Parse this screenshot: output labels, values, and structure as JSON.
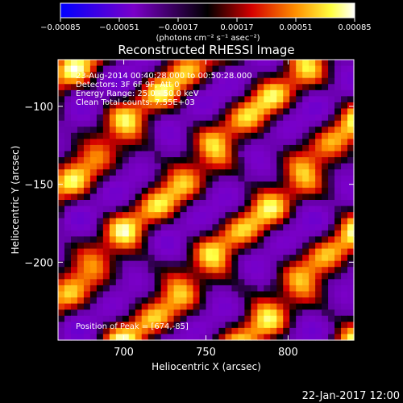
{
  "chart_data": {
    "type": "heatmap",
    "title": "Reconstructed RHESSI Image",
    "xlabel": "Heliocentric X (arcsec)",
    "ylabel": "Heliocentric Y (arcsec)",
    "xlim": [
      660,
      840
    ],
    "ylim": [
      -250,
      -70
    ],
    "x_ticks": [
      700,
      750,
      800
    ],
    "y_ticks": [
      -200,
      -150,
      -100
    ],
    "x_tick_labels": [
      "700",
      "750",
      "800"
    ],
    "y_tick_labels": [
      "−200",
      "−150",
      "−100"
    ],
    "colorbar": {
      "min": -0.00085,
      "max": 0.00085,
      "ticks": [
        -0.00085,
        -0.00051,
        -0.00017,
        0.00017,
        0.00051,
        0.00085
      ],
      "tick_labels": [
        "−0.00085",
        "−0.00051",
        "−0.00017",
        "0.00017",
        "0.00051",
        "0.00085"
      ],
      "unit_label": "(photons cm⁻² s⁻¹ asec⁻²)",
      "colors": [
        "#0000ff",
        "#7a00c8",
        "#000000",
        "#d40000",
        "#ff9000",
        "#ffff40",
        "#ffffff"
      ]
    },
    "annotations": {
      "time": "23-Aug-2014 00:40:28.000 to 00:50:28.000",
      "detectors": "Detectors: 3F 6F 9F, Att 0",
      "energy": "Energy Range: 25.0 - 50.0 keV",
      "clean": "Clean   Total counts: 7.55E+03",
      "peak": "Position of Peak = [674,-85]"
    },
    "peak": [
      674,
      -85
    ],
    "grid": false
  },
  "footer": {
    "date": "22-Jan-2017 12:00"
  }
}
